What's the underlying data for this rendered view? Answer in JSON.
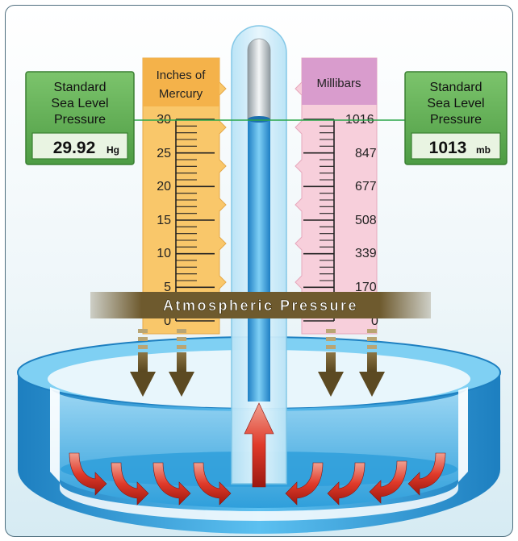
{
  "left_panel": {
    "line1": "Standard",
    "line2": "Sea Level",
    "line3": "Pressure",
    "value": "29.92",
    "unit": "Hg"
  },
  "right_panel": {
    "line1": "Standard",
    "line2": "Sea Level",
    "line3": "Pressure",
    "value": "1013",
    "unit": "mb"
  },
  "left_scale": {
    "title_line1": "Inches of",
    "title_line2": "Mercury",
    "labels": [
      "30",
      "25",
      "20",
      "15",
      "10",
      "5",
      "0"
    ]
  },
  "right_scale": {
    "title": "Millibars",
    "labels": [
      "1016",
      "847",
      "677",
      "508",
      "339",
      "170",
      "0"
    ]
  },
  "banner": {
    "text": "Atmospheric Pressure"
  },
  "colors": {
    "left_scale_bg": "#f9c76a",
    "right_scale_bg": "#f7cfdb",
    "panel_green": "#5fae54",
    "mercury_blue": "#2a8fd0",
    "banner_brown": "#6e5a2e",
    "arrow_red": "#d8241c",
    "down_arrow": "#6d5a2e",
    "dish_blue": "#2f9fdb"
  }
}
